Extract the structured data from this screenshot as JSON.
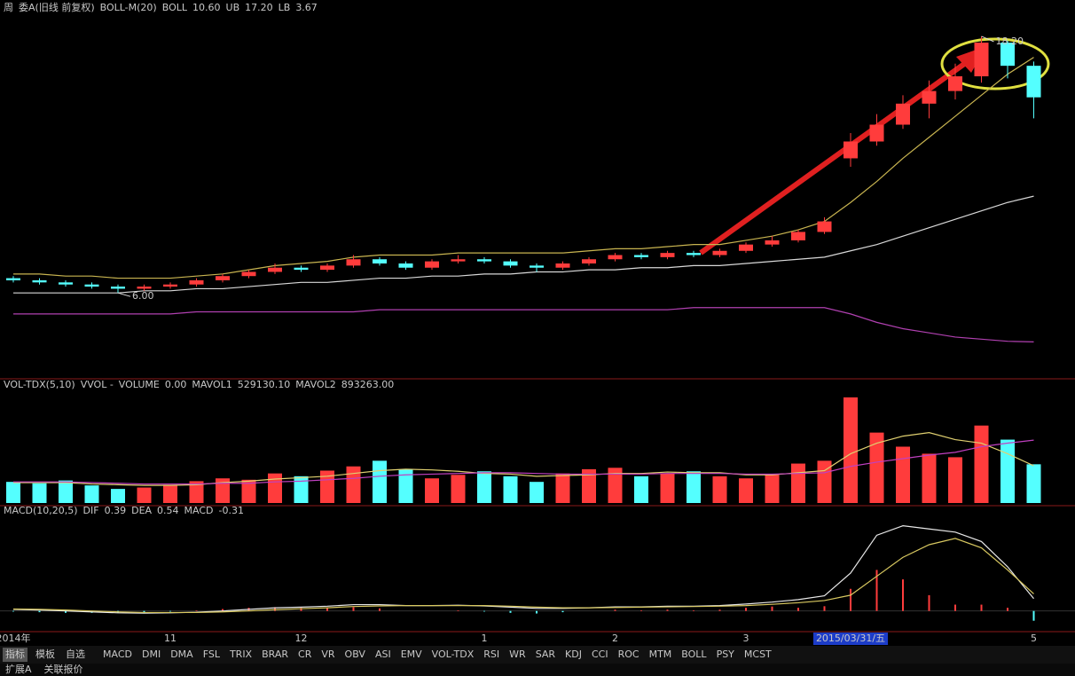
{
  "chart_data": [
    {
      "type": "candlestick",
      "header": [
        "周",
        "委A(旧线 前复权)",
        "BOLL-M(20)"
      ],
      "categories": [
        "2014年",
        null,
        null,
        null,
        null,
        null,
        "11",
        null,
        null,
        null,
        null,
        "12",
        null,
        null,
        null,
        null,
        null,
        null,
        "1",
        null,
        null,
        null,
        null,
        "2",
        null,
        null,
        null,
        null,
        "3",
        null,
        null,
        null,
        "2015/03/31/五",
        null,
        null,
        null,
        null,
        null,
        null,
        "5"
      ],
      "ohlc": [
        [
          6.7,
          6.8,
          6.5,
          6.6
        ],
        [
          6.6,
          6.7,
          6.4,
          6.5
        ],
        [
          6.5,
          6.6,
          6.3,
          6.4
        ],
        [
          6.4,
          6.5,
          6.2,
          6.3
        ],
        [
          6.3,
          6.4,
          6.0,
          6.2
        ],
        [
          6.2,
          6.4,
          6.1,
          6.3
        ],
        [
          6.3,
          6.5,
          6.2,
          6.4
        ],
        [
          6.4,
          6.7,
          6.3,
          6.6
        ],
        [
          6.6,
          6.9,
          6.5,
          6.8
        ],
        [
          6.8,
          7.1,
          6.7,
          7.0
        ],
        [
          7.0,
          7.4,
          6.9,
          7.2
        ],
        [
          7.2,
          7.3,
          7.0,
          7.1
        ],
        [
          7.1,
          7.4,
          7.0,
          7.3
        ],
        [
          7.3,
          7.8,
          7.2,
          7.6
        ],
        [
          7.6,
          7.7,
          7.3,
          7.4
        ],
        [
          7.4,
          7.5,
          7.1,
          7.2
        ],
        [
          7.2,
          7.6,
          7.1,
          7.5
        ],
        [
          7.5,
          7.8,
          7.4,
          7.6
        ],
        [
          7.6,
          7.7,
          7.4,
          7.5
        ],
        [
          7.5,
          7.6,
          7.2,
          7.3
        ],
        [
          7.3,
          7.4,
          7.0,
          7.2
        ],
        [
          7.2,
          7.5,
          7.1,
          7.4
        ],
        [
          7.4,
          7.7,
          7.3,
          7.6
        ],
        [
          7.6,
          7.9,
          7.5,
          7.8
        ],
        [
          7.8,
          7.9,
          7.6,
          7.7
        ],
        [
          7.7,
          8.0,
          7.6,
          7.9
        ],
        [
          7.9,
          8.0,
          7.7,
          7.8
        ],
        [
          7.8,
          8.1,
          7.7,
          8.0
        ],
        [
          8.0,
          8.4,
          7.9,
          8.3
        ],
        [
          8.3,
          8.7,
          8.2,
          8.5
        ],
        [
          8.5,
          9.0,
          8.4,
          8.9
        ],
        [
          8.9,
          9.6,
          8.8,
          9.4
        ],
        [
          12.4,
          13.6,
          12.0,
          13.2
        ],
        [
          13.2,
          14.5,
          13.0,
          14.0
        ],
        [
          14.0,
          15.4,
          13.8,
          15.0
        ],
        [
          15.0,
          16.1,
          14.3,
          15.6
        ],
        [
          15.6,
          16.9,
          15.2,
          16.3
        ],
        [
          16.3,
          18.2,
          16.0,
          17.9
        ],
        [
          17.9,
          18.0,
          16.2,
          16.8
        ],
        [
          16.8,
          17.0,
          14.3,
          15.3
        ]
      ],
      "up_color": "#ff3c3c",
      "down_color": "#54ffff",
      "series": [
        {
          "name": "BOLL",
          "value_label": "10.60",
          "color": "#d8d8d8",
          "values": [
            6.0,
            6.0,
            6.0,
            6.0,
            6.0,
            6.1,
            6.1,
            6.2,
            6.2,
            6.3,
            6.4,
            6.5,
            6.5,
            6.6,
            6.7,
            6.7,
            6.8,
            6.8,
            6.9,
            6.9,
            7.0,
            7.0,
            7.1,
            7.1,
            7.2,
            7.2,
            7.3,
            7.3,
            7.4,
            7.5,
            7.6,
            7.7,
            8.0,
            8.3,
            8.7,
            9.1,
            9.5,
            9.9,
            10.3,
            10.6
          ]
        },
        {
          "name": "UB",
          "value_label": "17.20",
          "color": "#c8b450",
          "values": [
            6.9,
            6.9,
            6.8,
            6.8,
            6.7,
            6.7,
            6.7,
            6.8,
            6.9,
            7.1,
            7.3,
            7.4,
            7.5,
            7.7,
            7.8,
            7.8,
            7.8,
            7.9,
            7.9,
            7.9,
            7.9,
            7.9,
            8.0,
            8.1,
            8.1,
            8.2,
            8.3,
            8.3,
            8.5,
            8.7,
            9.0,
            9.4,
            10.3,
            11.3,
            12.4,
            13.4,
            14.4,
            15.4,
            16.4,
            17.2
          ]
        },
        {
          "name": "LB",
          "value_label": "3.67",
          "color": "#b040b0",
          "values": [
            5.0,
            5.0,
            5.0,
            5.0,
            5.0,
            5.0,
            5.0,
            5.1,
            5.1,
            5.1,
            5.1,
            5.1,
            5.1,
            5.1,
            5.2,
            5.2,
            5.2,
            5.2,
            5.2,
            5.2,
            5.2,
            5.2,
            5.2,
            5.2,
            5.2,
            5.2,
            5.3,
            5.3,
            5.3,
            5.3,
            5.3,
            5.3,
            5.0,
            4.6,
            4.3,
            4.1,
            3.9,
            3.8,
            3.7,
            3.67
          ]
        }
      ],
      "annotations": [
        {
          "value": 18.2,
          "label": "18.20"
        },
        {
          "value": 6.0,
          "label": "6.00"
        }
      ],
      "ylim": [
        2,
        19
      ]
    },
    {
      "type": "volume",
      "header": [
        "VOL-TDX(5,10)",
        "VVOL -"
      ],
      "volume_name": "VOLUME",
      "volume_reading": "0.00",
      "values": [
        300000,
        280000,
        320000,
        250000,
        200000,
        220000,
        260000,
        310000,
        350000,
        330000,
        420000,
        380000,
        460000,
        520000,
        600000,
        480000,
        350000,
        400000,
        450000,
        380000,
        300000,
        420000,
        480000,
        500000,
        380000,
        420000,
        450000,
        380000,
        350000,
        400000,
        560000,
        600000,
        1500000,
        1000000,
        800000,
        700000,
        650000,
        1100000,
        900000,
        550000
      ],
      "series": [
        {
          "name": "MAVOL1",
          "value_label": "529130.10",
          "color": "#e0d070",
          "values": [
            290000,
            290000,
            290000,
            270000,
            260000,
            250000,
            250000,
            260000,
            290000,
            310000,
            340000,
            360000,
            380000,
            420000,
            460000,
            480000,
            470000,
            450000,
            420000,
            410000,
            380000,
            390000,
            400000,
            420000,
            420000,
            440000,
            430000,
            430000,
            400000,
            400000,
            430000,
            460000,
            700000,
            850000,
            950000,
            1000000,
            900000,
            850000,
            700000,
            529130.1
          ]
        },
        {
          "name": "MAVOL2",
          "value_label": "893263.00",
          "color": "#c040c0",
          "values": [
            300000,
            300000,
            300000,
            290000,
            280000,
            270000,
            270000,
            270000,
            280000,
            280000,
            300000,
            310000,
            330000,
            350000,
            380000,
            400000,
            410000,
            420000,
            430000,
            430000,
            420000,
            410000,
            410000,
            410000,
            410000,
            420000,
            420000,
            420000,
            410000,
            410000,
            420000,
            430000,
            520000,
            580000,
            630000,
            680000,
            720000,
            800000,
            850000,
            893263
          ]
        }
      ],
      "ylim": [
        0,
        1600000
      ]
    },
    {
      "type": "macd",
      "header": [
        "MACD(10,20,5)"
      ],
      "hist_name": "MACD",
      "hist_reading": "-0.31",
      "hist": [
        -0.02,
        -0.04,
        -0.06,
        -0.06,
        -0.06,
        -0.04,
        -0.02,
        0.02,
        0.06,
        0.1,
        0.12,
        0.1,
        0.1,
        0.12,
        0.08,
        0.0,
        0.0,
        0.02,
        -0.02,
        -0.06,
        -0.08,
        -0.04,
        0.0,
        0.04,
        0.02,
        0.04,
        0.02,
        0.04,
        0.1,
        0.14,
        0.1,
        0.15,
        0.7,
        1.3,
        1.0,
        0.5,
        0.2,
        0.2,
        0.1,
        -0.31
      ],
      "series": [
        {
          "name": "DIF",
          "value_label": "0.39",
          "color": "#e8e8e8",
          "values": [
            0.05,
            0.03,
            0.0,
            -0.03,
            -0.06,
            -0.07,
            -0.06,
            -0.04,
            0.0,
            0.05,
            0.1,
            0.12,
            0.15,
            0.2,
            0.2,
            0.17,
            0.17,
            0.18,
            0.16,
            0.12,
            0.08,
            0.08,
            0.1,
            0.13,
            0.13,
            0.15,
            0.15,
            0.17,
            0.22,
            0.28,
            0.36,
            0.48,
            1.2,
            2.4,
            2.7,
            2.6,
            2.5,
            2.2,
            1.4,
            0.39
          ]
        },
        {
          "name": "DEA",
          "value_label": "0.54",
          "color": "#d8c860",
          "values": [
            0.06,
            0.05,
            0.03,
            0.0,
            -0.03,
            -0.05,
            -0.05,
            -0.05,
            -0.03,
            0.0,
            0.04,
            0.07,
            0.1,
            0.14,
            0.16,
            0.17,
            0.17,
            0.17,
            0.17,
            0.15,
            0.12,
            0.1,
            0.1,
            0.11,
            0.12,
            0.13,
            0.14,
            0.15,
            0.17,
            0.21,
            0.26,
            0.33,
            0.5,
            1.1,
            1.7,
            2.1,
            2.3,
            2.0,
            1.3,
            0.54
          ]
        }
      ],
      "ylim": [
        -0.6,
        3.0
      ]
    }
  ],
  "toolbar": {
    "tabs": [
      "指标",
      "模板",
      "自选"
    ],
    "indicators": [
      "MACD",
      "DMI",
      "DMA",
      "FSL",
      "TRIX",
      "BRAR",
      "CR",
      "VR",
      "OBV",
      "ASI",
      "EMV",
      "VOL-TDX",
      "RSI",
      "WR",
      "SAR",
      "KDJ",
      "CCI",
      "ROC",
      "MTM",
      "BOLL",
      "PSY",
      "MCST"
    ]
  },
  "status": [
    "扩展A",
    "关联报价"
  ]
}
